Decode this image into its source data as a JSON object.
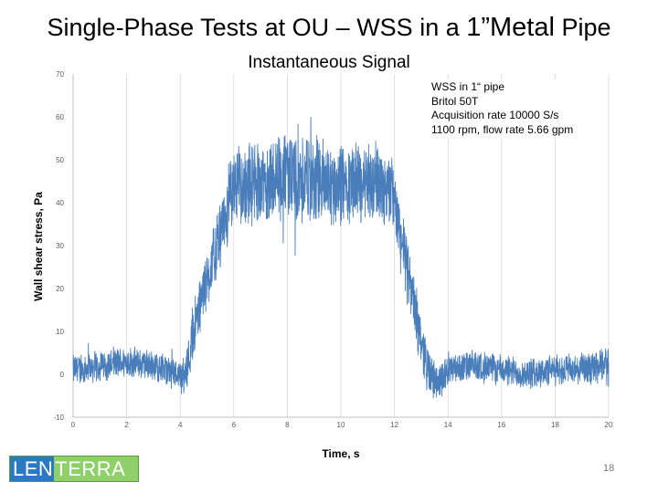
{
  "slide": {
    "title_part1": "Single-Phase Tests at OU – WSS in a ",
    "title_part2": "1”Metal",
    "title_part3": " Pipe",
    "page_number": "18"
  },
  "logo": {
    "part1": "LEN",
    "part2": "TERRA"
  },
  "chart_data": {
    "type": "line",
    "title": "Instantaneous Signal",
    "xlabel": "Time, s",
    "ylabel": "Wall shear stress, Pa",
    "xlim": [
      0,
      20
    ],
    "ylim": [
      -10,
      70
    ],
    "x_ticks": [
      "0",
      "2",
      "4",
      "6",
      "8",
      "10",
      "12",
      "14",
      "16",
      "18",
      "20"
    ],
    "y_ticks": [
      "-10",
      "0",
      "10",
      "20",
      "30",
      "40",
      "50",
      "60",
      "70"
    ],
    "grid": "vertical",
    "color": "#4a7ebb",
    "annotation": [
      "WSS in 1“ pipe",
      "Britol 50T",
      "Acquisition rate 10000 S/s",
      "1100 rpm, flow rate 5.66 gpm"
    ],
    "series": [
      {
        "x": [
          0,
          1,
          2,
          3,
          4,
          4.2,
          4.5,
          5,
          5.5,
          5.8,
          6,
          7,
          8,
          9,
          10,
          11,
          11.8,
          12,
          12.3,
          12.6,
          13,
          13.3,
          13.6,
          14,
          15,
          16,
          17,
          18,
          19,
          20
        ],
        "y": [
          1,
          2,
          3,
          2,
          0,
          0,
          10,
          22,
          32,
          40,
          44,
          45,
          46,
          45,
          44,
          45,
          44,
          40,
          30,
          20,
          8,
          0,
          -2,
          1,
          2,
          1,
          0,
          1,
          1,
          2
        ],
        "noise_amplitude": [
          4,
          4,
          4,
          4,
          4,
          5,
          8,
          8,
          9,
          10,
          10,
          11,
          12,
          12,
          11,
          11,
          10,
          9,
          9,
          8,
          7,
          6,
          5,
          4,
          4,
          4,
          4,
          4,
          4,
          5
        ]
      }
    ]
  }
}
